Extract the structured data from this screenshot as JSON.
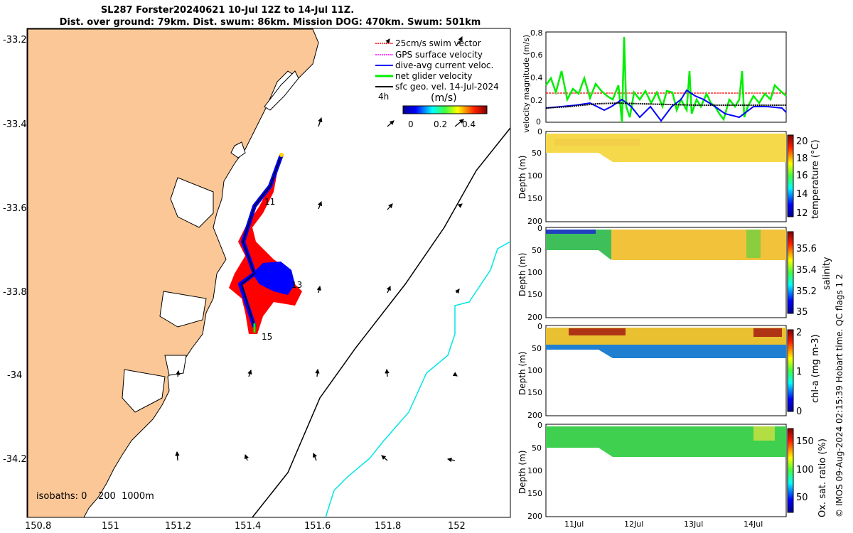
{
  "title": {
    "line1": "SL287 Forster20240621 10-Jul 12Z to 14-Jul 11Z.",
    "line2": "Dist. over ground: 79km. Dist. swum: 86km. Mission DOG: 470km. Swum: 501km"
  },
  "map": {
    "lat_ticks": [
      "-33.2",
      "-33.4",
      "-33.6",
      "-33.8",
      "-34",
      "-34.2"
    ],
    "lon_ticks": [
      "150.8",
      "151",
      "151.2",
      "151.4",
      "151.6",
      "151.8",
      "152"
    ],
    "legend": [
      {
        "label": "25cm/s swim vector",
        "color": "#ff0000"
      },
      {
        "label": "GPS surface velocity",
        "color": "#ff00ff"
      },
      {
        "label": "dive-avg current veloc.",
        "color": "#0000ff"
      },
      {
        "label": "net glider velocity",
        "color": "#00ee00"
      },
      {
        "label": "sfc geo. vel. 14-Jul-2024",
        "color": "#000000"
      }
    ],
    "scale_label": "4h",
    "colorbar_title": "(m/s)",
    "colorbar_ticks": [
      "0",
      "0.2",
      "0.4"
    ],
    "day_labels": [
      "11",
      "13",
      "15"
    ],
    "isobaths_label": "isobaths: 0",
    "isobath_200": "200",
    "isobath_1000": "1000m",
    "colors": {
      "land": "#fbc796",
      "isobath_200": "#000000",
      "isobath_1000": "#00e6e6"
    }
  },
  "panels": {
    "x_ticks": [
      "11Jul",
      "12Jul",
      "13Jul",
      "14Jul"
    ],
    "velocity": {
      "ylabel": "velocity magnitude (m/s)",
      "y_ticks": [
        "0.8",
        "0.6",
        "0.4",
        "0.2",
        "0"
      ]
    },
    "depth_ticks": [
      "0",
      "50",
      "100",
      "150",
      "200"
    ],
    "depth_label": "Depth (m)",
    "temperature": {
      "label": "temperature (°C)",
      "ticks": [
        "20",
        "18",
        "16",
        "14",
        "12"
      ]
    },
    "salinity": {
      "label": "salinity",
      "ticks": [
        "35.6",
        "35.4",
        "35.2",
        "35"
      ]
    },
    "chla": {
      "label": "chl-a (mg m-3)",
      "ticks": [
        "2",
        "1",
        "0"
      ]
    },
    "oxygen": {
      "label": "Ox. sat. ratio (%)",
      "ticks": [
        "150",
        "100",
        "50"
      ]
    }
  },
  "credit": "© IMOS 09-Aug-2024 02:15:39 Hobart time. QC flags 1  2",
  "chart_data": {
    "type": "line",
    "title": "velocity magnitude",
    "ylabel": "velocity magnitude (m/s)",
    "ylim": [
      0,
      0.8
    ],
    "x": [
      "11Jul",
      "12Jul",
      "13Jul",
      "14Jul"
    ],
    "series": [
      {
        "name": "net glider velocity",
        "values": [
          0.25,
          0.2,
          0.24,
          0.22
        ]
      },
      {
        "name": "dive-avg current veloc.",
        "values": [
          0.12,
          0.17,
          0.25,
          0.12
        ]
      },
      {
        "name": "sfc geo. vel.",
        "values": [
          0.12,
          0.15,
          0.15,
          0.15
        ]
      },
      {
        "name": "25cm/s swim vector",
        "values": [
          0.25,
          0.25,
          0.25,
          0.25
        ]
      }
    ]
  }
}
